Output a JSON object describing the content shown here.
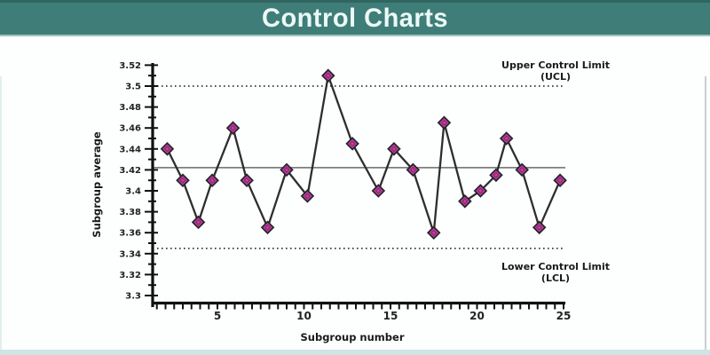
{
  "header": {
    "title": "Control Charts"
  },
  "colors": {
    "banner_bg": "#3F7D78",
    "banner_text": "#ECF9F6",
    "axis": "#111111",
    "tick_label": "#222222",
    "series_line": "#2E2E2E",
    "marker_fill": "#C840A4",
    "marker_inner": "#8A2570",
    "marker_stroke": "#26262B",
    "center_line": "#7E7E7E",
    "limit_line": "#3A3A3A",
    "annotation_text": "#1A1A1A",
    "bottom_strip": "#CFE4E5"
  },
  "chart_data": {
    "type": "line",
    "title": "",
    "xlabel": "Subgroup number",
    "ylabel": "Subgroup average",
    "marker": "diamond",
    "grid": false,
    "legend": "none",
    "xlim": [
      1,
      25.8
    ],
    "ylim": [
      3.3,
      3.52
    ],
    "x_tick_labels": [
      5,
      10,
      15,
      20,
      25
    ],
    "x_minor_tick_step": 0.5,
    "y_tick_labels": [
      3.3,
      3.32,
      3.34,
      3.36,
      3.38,
      3.4,
      3.42,
      3.44,
      3.46,
      3.48,
      3.5,
      3.52
    ],
    "y_minor_tick_step": 0.01,
    "x": [
      2.1,
      3.0,
      3.9,
      4.7,
      5.9,
      6.7,
      7.9,
      9.0,
      10.2,
      11.4,
      12.8,
      14.3,
      15.2,
      16.3,
      17.5,
      18.1,
      19.3,
      20.2,
      21.1,
      21.7,
      22.6,
      23.6,
      24.8
    ],
    "values": [
      3.44,
      3.41,
      3.37,
      3.41,
      3.46,
      3.41,
      3.365,
      3.42,
      3.395,
      3.51,
      3.445,
      3.4,
      3.44,
      3.42,
      3.36,
      3.465,
      3.39,
      3.4,
      3.415,
      3.45,
      3.42,
      3.365,
      3.41
    ],
    "center_line_value": 3.42,
    "ucl_value": 3.5,
    "lcl_value": 3.345,
    "ucl_label_line1": "Upper Control Limit",
    "ucl_label_line2": "(UCL)",
    "lcl_label_line1": "Lower Control Limit",
    "lcl_label_line2": "(LCL)"
  }
}
